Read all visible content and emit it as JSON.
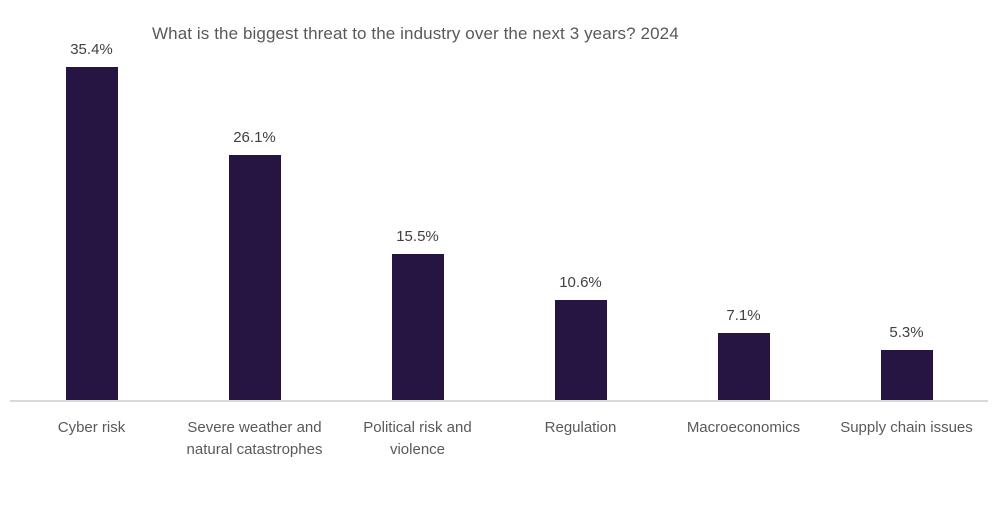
{
  "chart_data": {
    "type": "bar",
    "title": "What is the biggest threat to the industry over the next 3 years? 2024",
    "categories": [
      "Cyber risk",
      "Severe weather and natural catastrophes",
      "Political risk and violence",
      "Regulation",
      "Macroeconomics",
      "Supply chain issues"
    ],
    "values": [
      35.4,
      26.1,
      15.5,
      10.6,
      7.1,
      5.3
    ],
    "data_labels": [
      "35.4%",
      "26.1%",
      "15.5%",
      "10.6%",
      "7.1%",
      "5.3%"
    ],
    "xlabel": "",
    "ylabel": "",
    "ylim": [
      0,
      38
    ],
    "grid": false,
    "legend_position": "none",
    "y_axis_visible": false,
    "x_axis_line_visible": true
  },
  "colors": {
    "bar": "#261442",
    "title_text": "#595959",
    "data_label_text": "#404040",
    "category_label_text": "#595959",
    "axis_line": "#D9D9D9",
    "background": "#FFFFFF"
  }
}
